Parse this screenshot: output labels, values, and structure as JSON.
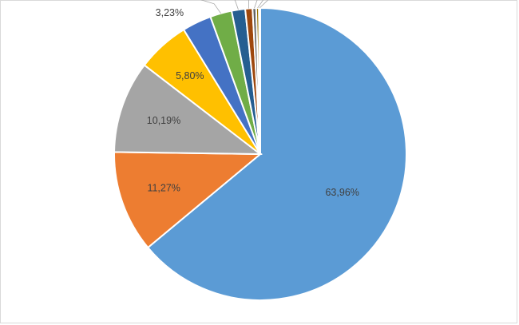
{
  "chart_data": {
    "type": "pie",
    "title": "",
    "values": [
      63.96,
      11.27,
      10.19,
      5.8,
      3.23,
      2.4,
      1.5,
      0.8,
      0.4,
      0.3,
      0.15
    ],
    "labels": [
      "63,96%",
      "11,27%",
      "10,19%",
      "5,80%",
      "3,23%",
      "",
      "",
      "",
      "",
      "",
      ""
    ],
    "colors": [
      "#5b9bd5",
      "#ed7d31",
      "#a5a5a5",
      "#ffc000",
      "#4472c4",
      "#70ad47",
      "#255e91",
      "#9e480e",
      "#636363",
      "#997300",
      "#264478"
    ],
    "start_angle": "12 o'clock",
    "direction": "clockwise",
    "legend": "none"
  }
}
